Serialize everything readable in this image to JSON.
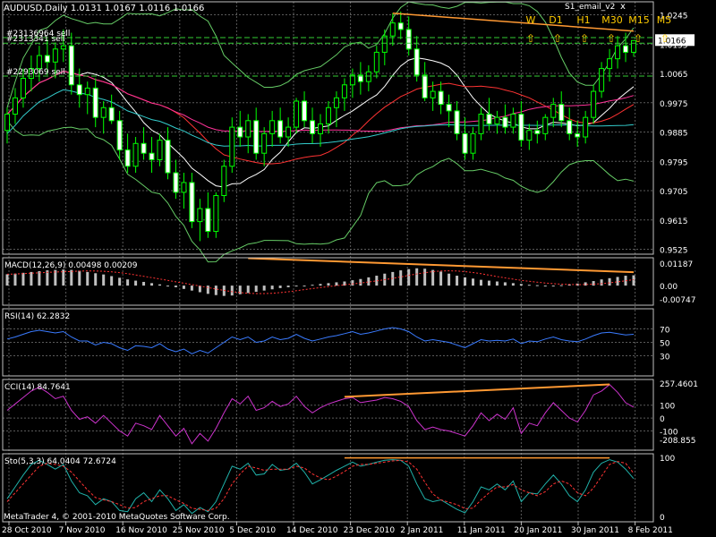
{
  "header": {
    "symbol_info": "AUDUSD,Daily  1.0131 1.0167 1.0116 1.0166",
    "indicator_name": "S1_email_v2",
    "close_label": "x",
    "timeframes": [
      "W",
      "D1",
      "H1",
      "M30",
      "M15",
      "M5"
    ],
    "arrow_glyph": "⇧"
  },
  "orders": [
    {
      "label": "#23136964 sell",
      "price": 1.0175
    },
    {
      "label": "#2313341  sell",
      "price": 1.0158
    },
    {
      "label": "#2293069  sell",
      "price": 1.0057
    }
  ],
  "price_label": "1.0166",
  "colors": {
    "bull": "#00ff00",
    "bear": "#ffffff",
    "grid": "#5a5a5a",
    "frame": "#c0c0c0",
    "orange": "#ff9933",
    "order_line": "#33cc33",
    "macd_signal": "#ff3333",
    "rsi": "#3a7bff",
    "cci": "#cc33cc",
    "sto_main": "#20b2aa",
    "sto_signal": "#ff3333",
    "ma_yellowgreen": "#9acd32",
    "ma_white": "#ffffff",
    "ma_red": "#ff3333",
    "ma_magenta": "#ff3399",
    "ma_cyan": "#33cccc",
    "band": "#66cc66"
  },
  "footer": "MetaTrader 4, © 2001-2010 MetaQuotes Software Corp.",
  "chart_data": {
    "type": "candlestick",
    "x_ticks": [
      "28 Oct 2010",
      "7 Nov 2010",
      "16 Nov 2010",
      "25 Nov 2010",
      "5 Dec 2010",
      "14 Dec 2010",
      "23 Dec 2010",
      "2 Jan 2011",
      "11 Jan 2011",
      "20 Jan 2011",
      "30 Jan 2011",
      "8 Feb 2011"
    ],
    "price": {
      "ylim": [
        0.951,
        1.0285
      ],
      "ticks": [
        "1.0245",
        "1.0155",
        "1.0065",
        "0.9975",
        "0.9885",
        "0.9795",
        "0.9705",
        "0.9615",
        "0.9525"
      ],
      "last": 1.0166,
      "candles": [
        [
          0.989,
          0.996,
          0.985,
          0.994
        ],
        [
          0.994,
          1.002,
          0.991,
          0.999
        ],
        [
          0.999,
          1.008,
          0.996,
          1.005
        ],
        [
          1.005,
          1.012,
          1.001,
          1.008
        ],
        [
          1.008,
          1.015,
          1.004,
          1.012
        ],
        [
          1.012,
          1.017,
          1.006,
          1.01
        ],
        [
          1.01,
          1.016,
          1.005,
          1.014
        ],
        [
          1.014,
          1.02,
          1.01,
          1.015
        ],
        [
          1.015,
          1.019,
          1.0,
          1.003
        ],
        [
          1.003,
          1.008,
          0.996,
          1.0
        ],
        [
          1.0,
          1.004,
          0.994,
          1.002
        ],
        [
          1.002,
          1.005,
          0.99,
          0.993
        ],
        [
          0.993,
          0.998,
          0.988,
          0.996
        ],
        [
          0.996,
          1.0,
          0.991,
          0.992
        ],
        [
          0.992,
          0.995,
          0.98,
          0.983
        ],
        [
          0.983,
          0.988,
          0.976,
          0.978
        ],
        [
          0.978,
          0.987,
          0.976,
          0.985
        ],
        [
          0.985,
          0.99,
          0.98,
          0.982
        ],
        [
          0.982,
          0.987,
          0.976,
          0.98
        ],
        [
          0.98,
          0.988,
          0.978,
          0.986
        ],
        [
          0.986,
          0.99,
          0.974,
          0.976
        ],
        [
          0.976,
          0.98,
          0.968,
          0.97
        ],
        [
          0.97,
          0.976,
          0.965,
          0.973
        ],
        [
          0.973,
          0.976,
          0.959,
          0.961
        ],
        [
          0.961,
          0.968,
          0.955,
          0.965
        ],
        [
          0.965,
          0.97,
          0.956,
          0.958
        ],
        [
          0.958,
          0.97,
          0.956,
          0.969
        ],
        [
          0.969,
          0.98,
          0.967,
          0.978
        ],
        [
          0.978,
          0.993,
          0.976,
          0.99
        ],
        [
          0.99,
          0.995,
          0.984,
          0.987
        ],
        [
          0.987,
          0.994,
          0.982,
          0.992
        ],
        [
          0.992,
          0.996,
          0.98,
          0.982
        ],
        [
          0.982,
          0.99,
          0.978,
          0.988
        ],
        [
          0.988,
          0.995,
          0.984,
          0.992
        ],
        [
          0.992,
          0.996,
          0.985,
          0.987
        ],
        [
          0.987,
          0.993,
          0.984,
          0.99
        ],
        [
          0.99,
          0.999,
          0.988,
          0.998
        ],
        [
          0.998,
          1.001,
          0.99,
          0.992
        ],
        [
          0.992,
          0.996,
          0.985,
          0.988
        ],
        [
          0.988,
          0.994,
          0.984,
          0.991
        ],
        [
          0.991,
          0.998,
          0.988,
          0.996
        ],
        [
          0.996,
          1.001,
          0.99,
          0.999
        ],
        [
          0.999,
          1.005,
          0.995,
          1.003
        ],
        [
          1.003,
          1.008,
          0.999,
          1.006
        ],
        [
          1.006,
          1.01,
          1.0,
          1.004
        ],
        [
          1.004,
          1.009,
          1.001,
          1.007
        ],
        [
          1.007,
          1.015,
          1.005,
          1.013
        ],
        [
          1.013,
          1.02,
          1.009,
          1.018
        ],
        [
          1.018,
          1.025,
          1.015,
          1.022
        ],
        [
          1.022,
          1.0255,
          1.017,
          1.02
        ],
        [
          1.02,
          1.024,
          1.012,
          1.014
        ],
        [
          1.014,
          1.018,
          1.004,
          1.006
        ],
        [
          1.006,
          1.01,
          0.998,
          0.999
        ],
        [
          0.999,
          1.004,
          0.995,
          1.001
        ],
        [
          1.001,
          1.004,
          0.994,
          0.997
        ],
        [
          0.997,
          1.0,
          0.99,
          0.995
        ],
        [
          0.995,
          0.998,
          0.986,
          0.988
        ],
        [
          0.988,
          0.993,
          0.98,
          0.982
        ],
        [
          0.982,
          0.99,
          0.98,
          0.988
        ],
        [
          0.988,
          0.996,
          0.986,
          0.994
        ],
        [
          0.994,
          0.999,
          0.989,
          0.991
        ],
        [
          0.991,
          0.995,
          0.988,
          0.993
        ],
        [
          0.993,
          0.997,
          0.988,
          0.99
        ],
        [
          0.99,
          0.996,
          0.988,
          0.994
        ],
        [
          0.994,
          0.998,
          0.984,
          0.986
        ],
        [
          0.986,
          0.991,
          0.983,
          0.989
        ],
        [
          0.989,
          0.992,
          0.985,
          0.988
        ],
        [
          0.988,
          0.994,
          0.986,
          0.993
        ],
        [
          0.993,
          0.999,
          0.99,
          0.997
        ],
        [
          0.997,
          1.001,
          0.99,
          0.992
        ],
        [
          0.992,
          0.996,
          0.986,
          0.988
        ],
        [
          0.988,
          0.992,
          0.984,
          0.987
        ],
        [
          0.987,
          0.995,
          0.985,
          0.993
        ],
        [
          0.993,
          1.003,
          0.991,
          1.001
        ],
        [
          1.001,
          1.01,
          0.999,
          1.008
        ],
        [
          1.008,
          1.014,
          1.004,
          1.011
        ],
        [
          1.011,
          1.018,
          1.008,
          1.015
        ],
        [
          1.015,
          1.019,
          1.01,
          1.013
        ],
        [
          1.013,
          1.0167,
          1.0116,
          1.0166
        ]
      ]
    },
    "macd": {
      "label": "MACD(12,26,9) 0.00498 0.00209",
      "ticks": [
        "0.01187",
        "0.00",
        "-0.00747"
      ],
      "ylim": [
        -0.0095,
        0.0135
      ],
      "histogram": [
        0.0055,
        0.0058,
        0.0062,
        0.0066,
        0.007,
        0.0074,
        0.0076,
        0.0078,
        0.0076,
        0.0072,
        0.0066,
        0.006,
        0.0054,
        0.0046,
        0.0038,
        0.003,
        0.0024,
        0.0018,
        0.0012,
        0.0006,
        0.0,
        -0.0008,
        -0.0016,
        -0.0024,
        -0.0032,
        -0.004,
        -0.0046,
        -0.005,
        -0.0048,
        -0.0042,
        -0.0036,
        -0.003,
        -0.0024,
        -0.0018,
        -0.0012,
        -0.0008,
        -0.0004,
        0.0,
        0.0004,
        0.0008,
        0.0012,
        0.0016,
        0.002,
        0.0026,
        0.0032,
        0.004,
        0.0048,
        0.0058,
        0.0066,
        0.0074,
        0.008,
        0.0084,
        0.0082,
        0.0076,
        0.0068,
        0.0058,
        0.0048,
        0.004,
        0.0034,
        0.0028,
        0.0024,
        0.002,
        0.0016,
        0.0012,
        0.0008,
        0.0004,
        0.0002,
        0.0,
        0.0,
        0.0002,
        0.0006,
        0.001,
        0.0016,
        0.0022,
        0.003,
        0.0036,
        0.0042,
        0.0048,
        0.005
      ]
    },
    "rsi": {
      "label": "RSI(14) 62.2832",
      "ticks": [
        "70",
        "50",
        "30"
      ],
      "ylim": [
        0,
        100
      ],
      "values": [
        55,
        58,
        62,
        66,
        68,
        66,
        64,
        66,
        58,
        52,
        52,
        46,
        50,
        48,
        42,
        38,
        45,
        44,
        42,
        48,
        40,
        36,
        40,
        33,
        38,
        34,
        42,
        50,
        58,
        54,
        58,
        50,
        52,
        58,
        54,
        56,
        62,
        56,
        52,
        55,
        58,
        60,
        63,
        66,
        62,
        64,
        67,
        70,
        72,
        70,
        66,
        58,
        52,
        54,
        52,
        50,
        46,
        42,
        48,
        54,
        52,
        53,
        52,
        55,
        48,
        52,
        51,
        55,
        58,
        54,
        52,
        51,
        55,
        60,
        64,
        65,
        63,
        61,
        62
      ]
    },
    "cci": {
      "label": "CCI(14) 84.7641",
      "ticks": [
        "257.4601",
        "100",
        "0",
        "-100",
        "-208.855"
      ],
      "ylim": [
        -250,
        300
      ],
      "values": [
        60,
        110,
        160,
        210,
        240,
        200,
        150,
        170,
        60,
        -10,
        10,
        -40,
        20,
        -40,
        -100,
        -140,
        -40,
        -60,
        -90,
        20,
        -60,
        -140,
        -80,
        -200,
        -120,
        -180,
        -80,
        40,
        150,
        110,
        170,
        60,
        80,
        130,
        90,
        110,
        170,
        90,
        40,
        80,
        110,
        130,
        150,
        160,
        120,
        130,
        140,
        160,
        150,
        130,
        90,
        -20,
        -90,
        -70,
        -90,
        -100,
        -120,
        -140,
        -60,
        40,
        -20,
        30,
        -10,
        80,
        -120,
        -40,
        -60,
        40,
        120,
        60,
        0,
        -30,
        60,
        180,
        210,
        260,
        200,
        120,
        85
      ]
    },
    "stochastic": {
      "label": "Sto(5,3,3) 64.0404 72.6724",
      "ticks": [
        "100",
        "0"
      ],
      "ylim": [
        0,
        100
      ],
      "main": [
        30,
        50,
        70,
        88,
        95,
        88,
        80,
        88,
        60,
        40,
        35,
        20,
        30,
        25,
        10,
        8,
        30,
        40,
        25,
        45,
        30,
        10,
        20,
        5,
        15,
        8,
        25,
        55,
        85,
        80,
        90,
        70,
        72,
        88,
        78,
        80,
        90,
        75,
        55,
        62,
        70,
        78,
        85,
        92,
        85,
        88,
        92,
        95,
        96,
        95,
        85,
        55,
        30,
        25,
        28,
        20,
        12,
        6,
        25,
        50,
        45,
        55,
        45,
        60,
        25,
        40,
        38,
        55,
        70,
        55,
        35,
        25,
        45,
        75,
        90,
        96,
        92,
        80,
        64
      ],
      "signal": [
        25,
        40,
        55,
        70,
        85,
        90,
        88,
        85,
        75,
        60,
        45,
        32,
        28,
        25,
        20,
        14,
        15,
        25,
        30,
        35,
        35,
        28,
        22,
        14,
        12,
        10,
        14,
        30,
        55,
        72,
        85,
        82,
        78,
        80,
        80,
        80,
        85,
        82,
        72,
        65,
        62,
        68,
        76,
        85,
        88,
        88,
        90,
        92,
        94,
        95,
        92,
        80,
        58,
        38,
        28,
        24,
        20,
        13,
        14,
        28,
        40,
        50,
        50,
        54,
        45,
        40,
        35,
        42,
        55,
        60,
        55,
        40,
        35,
        48,
        68,
        88,
        93,
        90,
        73
      ]
    }
  }
}
